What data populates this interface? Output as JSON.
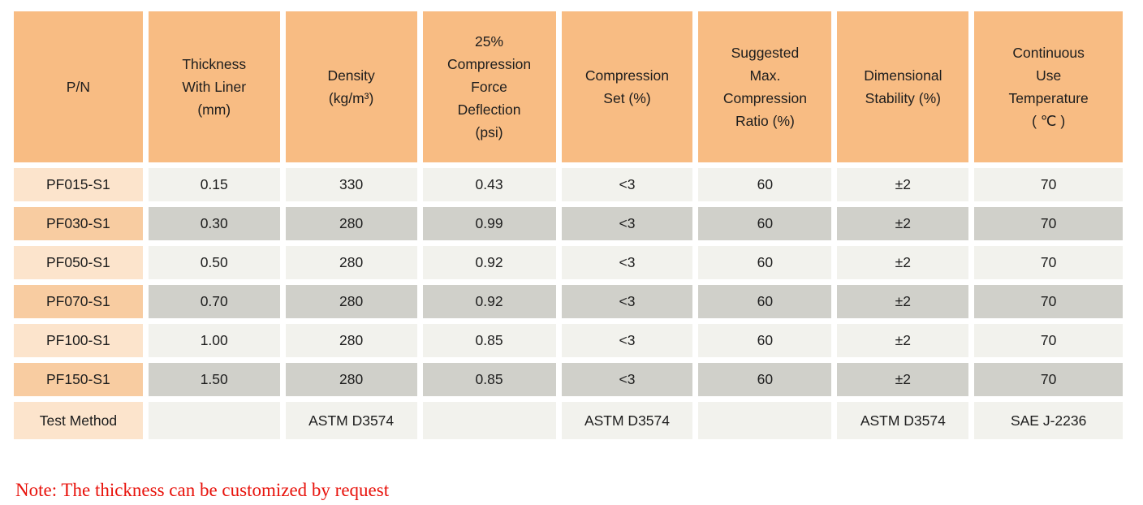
{
  "table": {
    "column_keys": [
      "pn",
      "thickness",
      "density",
      "cfd",
      "cset",
      "ratio",
      "dim",
      "temp"
    ],
    "columns": [
      {
        "key": "pn",
        "label": "P/N"
      },
      {
        "key": "thickness",
        "label": "Thickness\nWith Liner\n(mm)"
      },
      {
        "key": "density",
        "label": "Density\n(kg/m³)"
      },
      {
        "key": "cfd",
        "label": "25%\nCompression\nForce\nDeflection\n(psi)"
      },
      {
        "key": "cset",
        "label": "Compression\nSet (%)"
      },
      {
        "key": "ratio",
        "label": "Suggested\nMax.\nCompression\nRatio (%)"
      },
      {
        "key": "dim",
        "label": "Dimensional\nStability (%)"
      },
      {
        "key": "temp",
        "label": "Continuous\nUse\nTemperature\n( ℃ )"
      }
    ],
    "rows": [
      {
        "pn": "PF015-S1",
        "thickness": "0.15",
        "density": "330",
        "cfd": "0.43",
        "cset": "<3",
        "ratio": "60",
        "dim": "±2",
        "temp": "70"
      },
      {
        "pn": "PF030-S1",
        "thickness": "0.30",
        "density": "280",
        "cfd": "0.99",
        "cset": "<3",
        "ratio": "60",
        "dim": "±2",
        "temp": "70"
      },
      {
        "pn": "PF050-S1",
        "thickness": "0.50",
        "density": "280",
        "cfd": "0.92",
        "cset": "<3",
        "ratio": "60",
        "dim": "±2",
        "temp": "70"
      },
      {
        "pn": "PF070-S1",
        "thickness": "0.70",
        "density": "280",
        "cfd": "0.92",
        "cset": "<3",
        "ratio": "60",
        "dim": "±2",
        "temp": "70"
      },
      {
        "pn": "PF100-S1",
        "thickness": "1.00",
        "density": "280",
        "cfd": "0.85",
        "cset": "<3",
        "ratio": "60",
        "dim": "±2",
        "temp": "70"
      },
      {
        "pn": "PF150-S1",
        "thickness": "1.50",
        "density": "280",
        "cfd": "0.85",
        "cset": "<3",
        "ratio": "60",
        "dim": "±2",
        "temp": "70"
      },
      {
        "pn": "Test Method",
        "thickness": "",
        "density": "ASTM D3574",
        "cfd": "",
        "cset": "ASTM D3574",
        "ratio": "",
        "dim": "ASTM D3574",
        "temp": "SAE J-2236"
      }
    ]
  },
  "note": "Note: The thickness can be customized by request",
  "colors": {
    "header_bg": "#f8bc83",
    "pn_light": "#fce4cc",
    "pn_dark": "#f8cca1",
    "cell_light": "#f2f2ed",
    "cell_dark": "#d0d0ca",
    "text": "#1d1d1d",
    "note_red": "#e8130c"
  }
}
